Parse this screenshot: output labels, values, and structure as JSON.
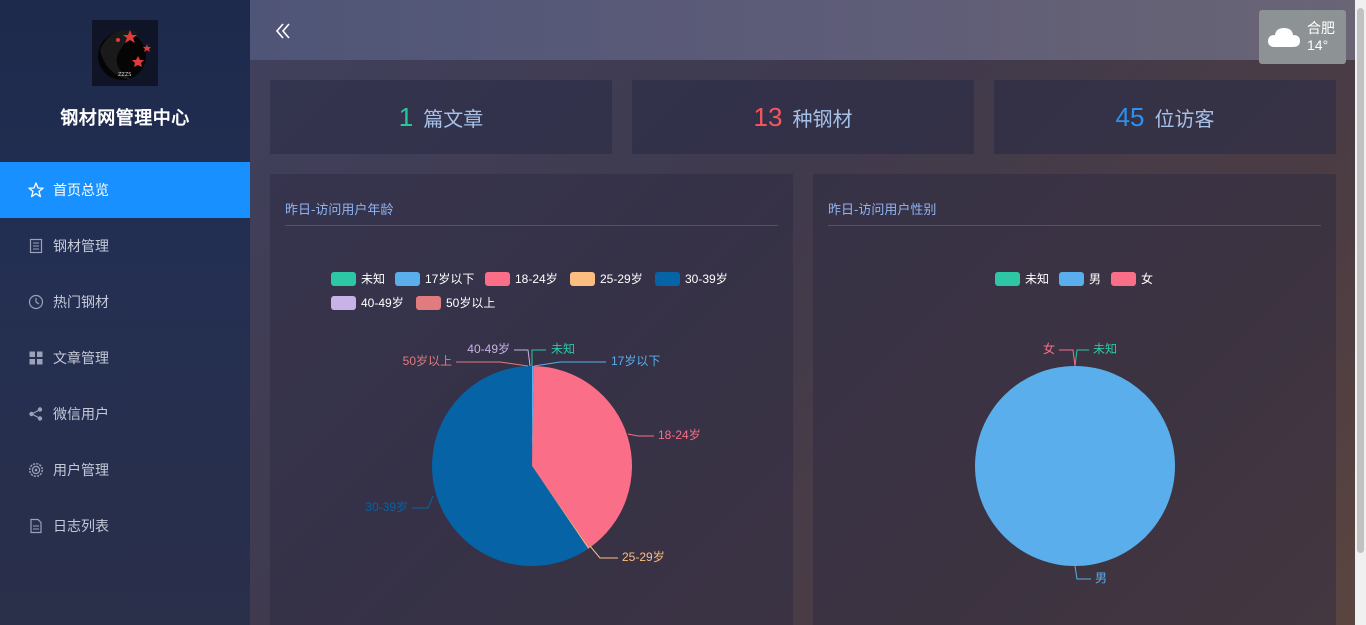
{
  "sidebar": {
    "title": "钢材网管理中心",
    "items": [
      {
        "label": "首页总览",
        "icon": "star-icon",
        "active": true
      },
      {
        "label": "钢材管理",
        "icon": "document-icon",
        "active": false
      },
      {
        "label": "热门钢材",
        "icon": "clock-icon",
        "active": false
      },
      {
        "label": "文章管理",
        "icon": "grid-icon",
        "active": false
      },
      {
        "label": "微信用户",
        "icon": "share-icon",
        "active": false
      },
      {
        "label": "用户管理",
        "icon": "settings-icon",
        "active": false
      },
      {
        "label": "日志列表",
        "icon": "file-icon",
        "active": false
      }
    ]
  },
  "header": {
    "weather": {
      "city": "合肥",
      "temp": "14°",
      "icon": "cloud-icon"
    }
  },
  "stats": [
    {
      "value": "1",
      "label": "篇文章",
      "color": "#2bc79b"
    },
    {
      "value": "13",
      "label": "种钢材",
      "color": "#f5555d"
    },
    {
      "value": "45",
      "label": "位访客",
      "color": "#2d8ff0"
    }
  ],
  "panels": {
    "age": {
      "title": "昨日-访问用户年龄"
    },
    "gender": {
      "title": "昨日-访问用户性别"
    }
  },
  "chart_data": [
    {
      "type": "pie",
      "title": "昨日-访问用户年龄",
      "categories": [
        "未知",
        "17岁以下",
        "18-24岁",
        "25-29岁",
        "30-39岁",
        "40-49岁",
        "50岁以上"
      ],
      "values": [
        0,
        0.3,
        40,
        0.2,
        59.5,
        0,
        0
      ],
      "colors": [
        "#2ec7a5",
        "#5aaeeb",
        "#fb6e87",
        "#fdbd80",
        "#0563a6",
        "#c7b3e5",
        "#e07b80"
      ],
      "legend": "top"
    },
    {
      "type": "pie",
      "title": "昨日-访问用户性别",
      "categories": [
        "未知",
        "男",
        "女"
      ],
      "values": [
        0,
        100,
        0
      ],
      "colors": [
        "#2ec7a5",
        "#5aaeeb",
        "#fb6e87"
      ],
      "legend": "top"
    }
  ]
}
